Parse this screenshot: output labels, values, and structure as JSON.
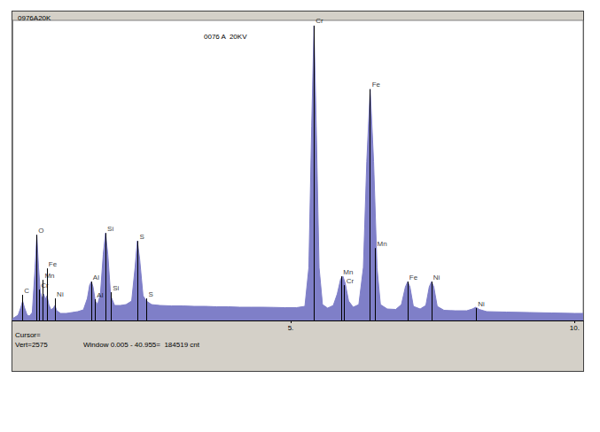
{
  "chart_data": {
    "type": "line",
    "title": "0976A20K",
    "subtitle": "0076 A  20KV",
    "annotations": [
      "Cursor=",
      "Vert=2575",
      "Window 0.005 - 40.955=  184519 cnt"
    ],
    "color": "#7f7fc8",
    "grid": false,
    "tick_labels": "x",
    "xlim": [
      0.1,
      10.15
    ],
    "xticks": [
      {
        "value": 5,
        "label": "5."
      },
      {
        "value": 10,
        "label": "10."
      }
    ],
    "ylim": [
      0,
      3400
    ],
    "x": [
      0.1,
      0.2,
      0.25,
      0.28,
      0.31,
      0.36,
      0.4,
      0.45,
      0.5,
      0.53,
      0.56,
      0.59,
      0.62,
      0.65,
      0.68,
      0.71,
      0.74,
      0.78,
      0.82,
      0.85,
      0.88,
      0.95,
      1.05,
      1.15,
      1.25,
      1.35,
      1.42,
      1.46,
      1.49,
      1.52,
      1.56,
      1.6,
      1.65,
      1.7,
      1.74,
      1.78,
      1.83,
      1.9,
      2.0,
      2.1,
      2.2,
      2.26,
      2.3,
      2.34,
      2.4,
      2.46,
      2.55,
      2.7,
      2.9,
      3.1,
      3.3,
      3.5,
      3.7,
      3.9,
      4.1,
      4.3,
      4.5,
      4.7,
      4.9,
      5.1,
      5.25,
      5.32,
      5.37,
      5.41,
      5.45,
      5.5,
      5.56,
      5.65,
      5.75,
      5.82,
      5.88,
      5.92,
      5.96,
      6.02,
      6.1,
      6.2,
      6.28,
      6.34,
      6.4,
      6.46,
      6.52,
      6.58,
      6.7,
      6.85,
      6.95,
      7.02,
      7.06,
      7.1,
      7.16,
      7.28,
      7.38,
      7.44,
      7.48,
      7.52,
      7.58,
      7.7,
      7.9,
      8.1,
      8.2,
      8.26,
      8.32,
      8.45,
      8.8,
      9.2,
      9.6,
      10.0,
      10.15
    ],
    "values": [
      20,
      60,
      150,
      220,
      150,
      60,
      50,
      90,
      600,
      970,
      600,
      330,
      250,
      300,
      240,
      280,
      180,
      120,
      140,
      170,
      110,
      80,
      80,
      90,
      100,
      120,
      250,
      400,
      440,
      380,
      220,
      180,
      300,
      750,
      990,
      750,
      280,
      170,
      170,
      180,
      220,
      600,
      900,
      700,
      280,
      220,
      180,
      170,
      165,
      165,
      160,
      160,
      155,
      155,
      150,
      150,
      150,
      148,
      145,
      145,
      160,
      600,
      2200,
      3340,
      2200,
      600,
      180,
      140,
      170,
      300,
      470,
      500,
      420,
      220,
      150,
      180,
      600,
      1800,
      2620,
      1800,
      600,
      180,
      130,
      125,
      180,
      380,
      440,
      380,
      160,
      130,
      170,
      380,
      440,
      380,
      160,
      115,
      110,
      110,
      130,
      150,
      125,
      100,
      95,
      90,
      85,
      80,
      80
    ],
    "peak_labels": [
      {
        "label": "C",
        "x": 0.277,
        "y": 290
      },
      {
        "label": "O",
        "x": 0.525,
        "y": 970
      },
      {
        "label": "Cr",
        "x": 0.573,
        "y": 350
      },
      {
        "label": "Mn",
        "x": 0.637,
        "y": 460
      },
      {
        "label": "Fe",
        "x": 0.705,
        "y": 590
      },
      {
        "label": "Ni",
        "x": 0.851,
        "y": 250
      },
      {
        "label": "Al",
        "x": 1.486,
        "y": 440
      },
      {
        "label": "Al",
        "x": 1.557,
        "y": 240
      },
      {
        "label": "Si",
        "x": 1.74,
        "y": 990
      },
      {
        "label": "Si",
        "x": 1.836,
        "y": 320
      },
      {
        "label": "S",
        "x": 2.307,
        "y": 900
      },
      {
        "label": "S",
        "x": 2.464,
        "y": 250
      },
      {
        "label": "Cr",
        "x": 5.411,
        "y": 3340
      },
      {
        "label": "Mn",
        "x": 5.895,
        "y": 500
      },
      {
        "label": "Cr",
        "x": 5.947,
        "y": 400
      },
      {
        "label": "Fe",
        "x": 6.4,
        "y": 2620
      },
      {
        "label": "Mn",
        "x": 6.49,
        "y": 820
      },
      {
        "label": "Fe",
        "x": 7.058,
        "y": 440
      },
      {
        "label": "Ni",
        "x": 7.478,
        "y": 440
      },
      {
        "label": "Ni",
        "x": 8.265,
        "y": 140
      }
    ]
  }
}
